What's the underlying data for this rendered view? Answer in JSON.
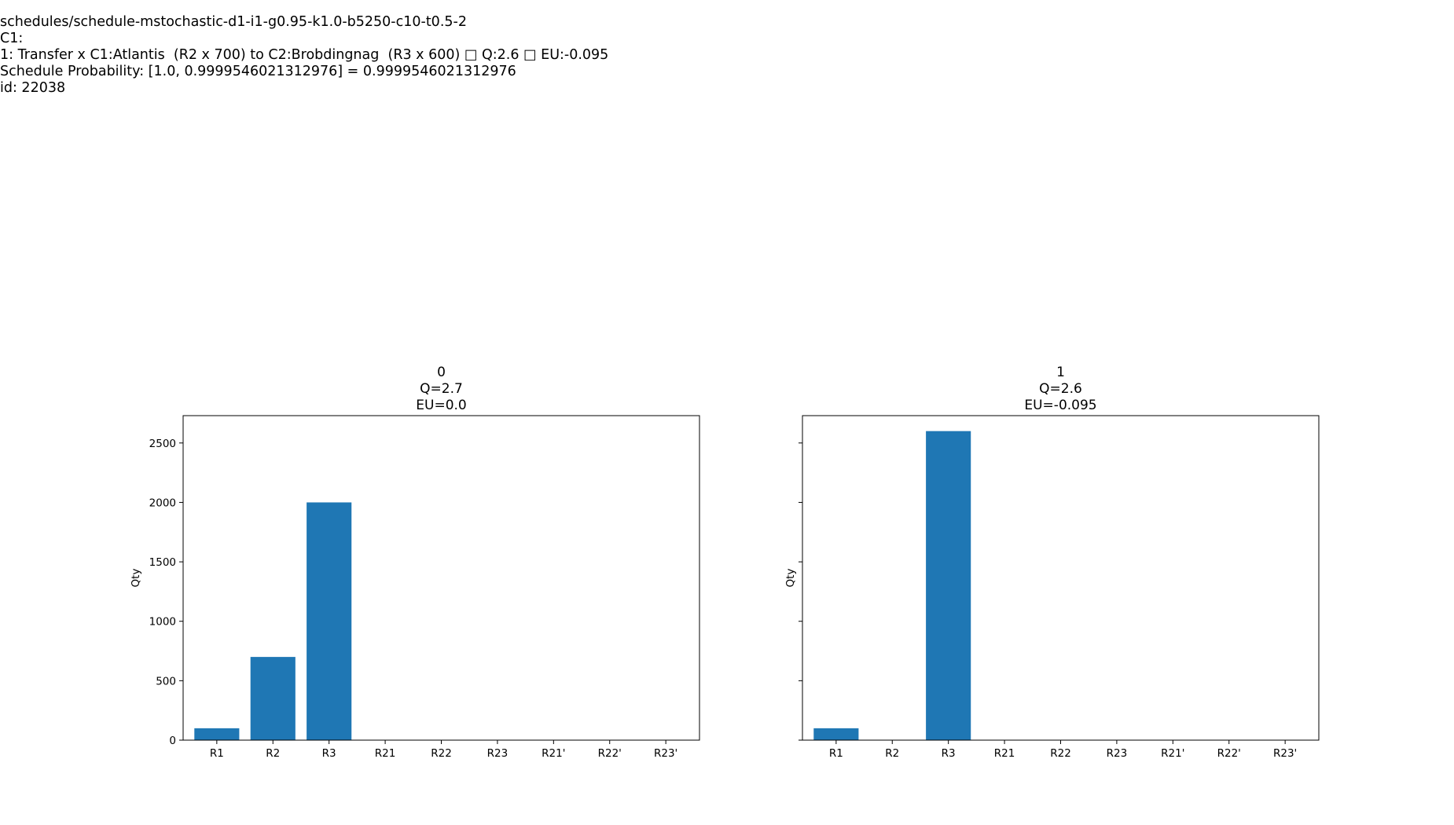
{
  "header": {
    "lines": [
      "schedules/schedule-mstochastic-d1-i1-g0.95-k1.0-b5250-c10-t0.5-2",
      "C1:",
      "1: Transfer x C1:Atlantis  (R2 x 700) to C2:Brobdingnag  (R3 x 600) □ Q:2.6 □ EU:-0.095",
      "Schedule Probability: [1.0, 0.9999546021312976] = 0.9999546021312976",
      "id: 22038"
    ]
  },
  "chart_data": [
    {
      "type": "bar",
      "title_lines": [
        "0",
        "Q=2.7",
        "EU=0.0"
      ],
      "ylabel": "Qty",
      "categories": [
        "R1",
        "R2",
        "R3",
        "R21",
        "R22",
        "R23",
        "R21'",
        "R22'",
        "R23'"
      ],
      "values": [
        100,
        700,
        2000,
        0,
        0,
        0,
        0,
        0,
        0
      ],
      "yticks": [
        0,
        500,
        1000,
        1500,
        2000,
        2500
      ],
      "ylim": [
        0,
        2730
      ],
      "show_ytick_labels": true,
      "bar_color": "#1f77b4"
    },
    {
      "type": "bar",
      "title_lines": [
        "1",
        "Q=2.6",
        "EU=-0.095"
      ],
      "ylabel": "Qty",
      "categories": [
        "R1",
        "R2",
        "R3",
        "R21",
        "R22",
        "R23",
        "R21'",
        "R22'",
        "R23'"
      ],
      "values": [
        100,
        0,
        2600,
        0,
        0,
        0,
        0,
        0,
        0
      ],
      "yticks": [
        0,
        500,
        1000,
        1500,
        2000,
        2500
      ],
      "ylim": [
        0,
        2730
      ],
      "show_ytick_labels": false,
      "bar_color": "#1f77b4"
    }
  ]
}
